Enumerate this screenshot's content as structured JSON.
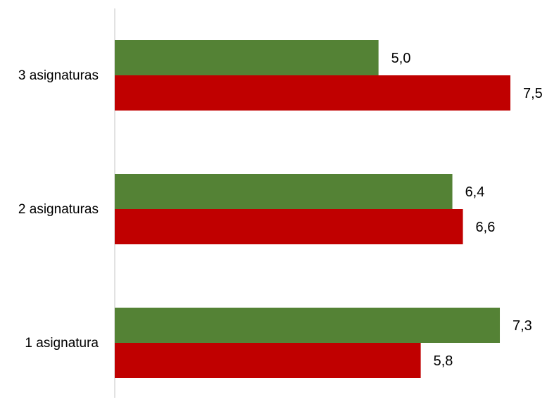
{
  "chart_data": {
    "type": "bar",
    "orientation": "horizontal",
    "categories": [
      "3 asignaturas",
      "2 asignaturas",
      "1 asignatura"
    ],
    "series": [
      {
        "values": [
          5.0,
          6.4,
          7.3
        ],
        "labels": [
          "5,0",
          "6,4",
          "7,3"
        ],
        "color": "#548235"
      },
      {
        "values": [
          7.5,
          6.6,
          5.8
        ],
        "labels": [
          "7,5",
          "6,6",
          "5,8"
        ],
        "color": "#c00000"
      }
    ],
    "xlim": [
      0,
      7.5
    ],
    "grid": false,
    "legend": "none"
  }
}
